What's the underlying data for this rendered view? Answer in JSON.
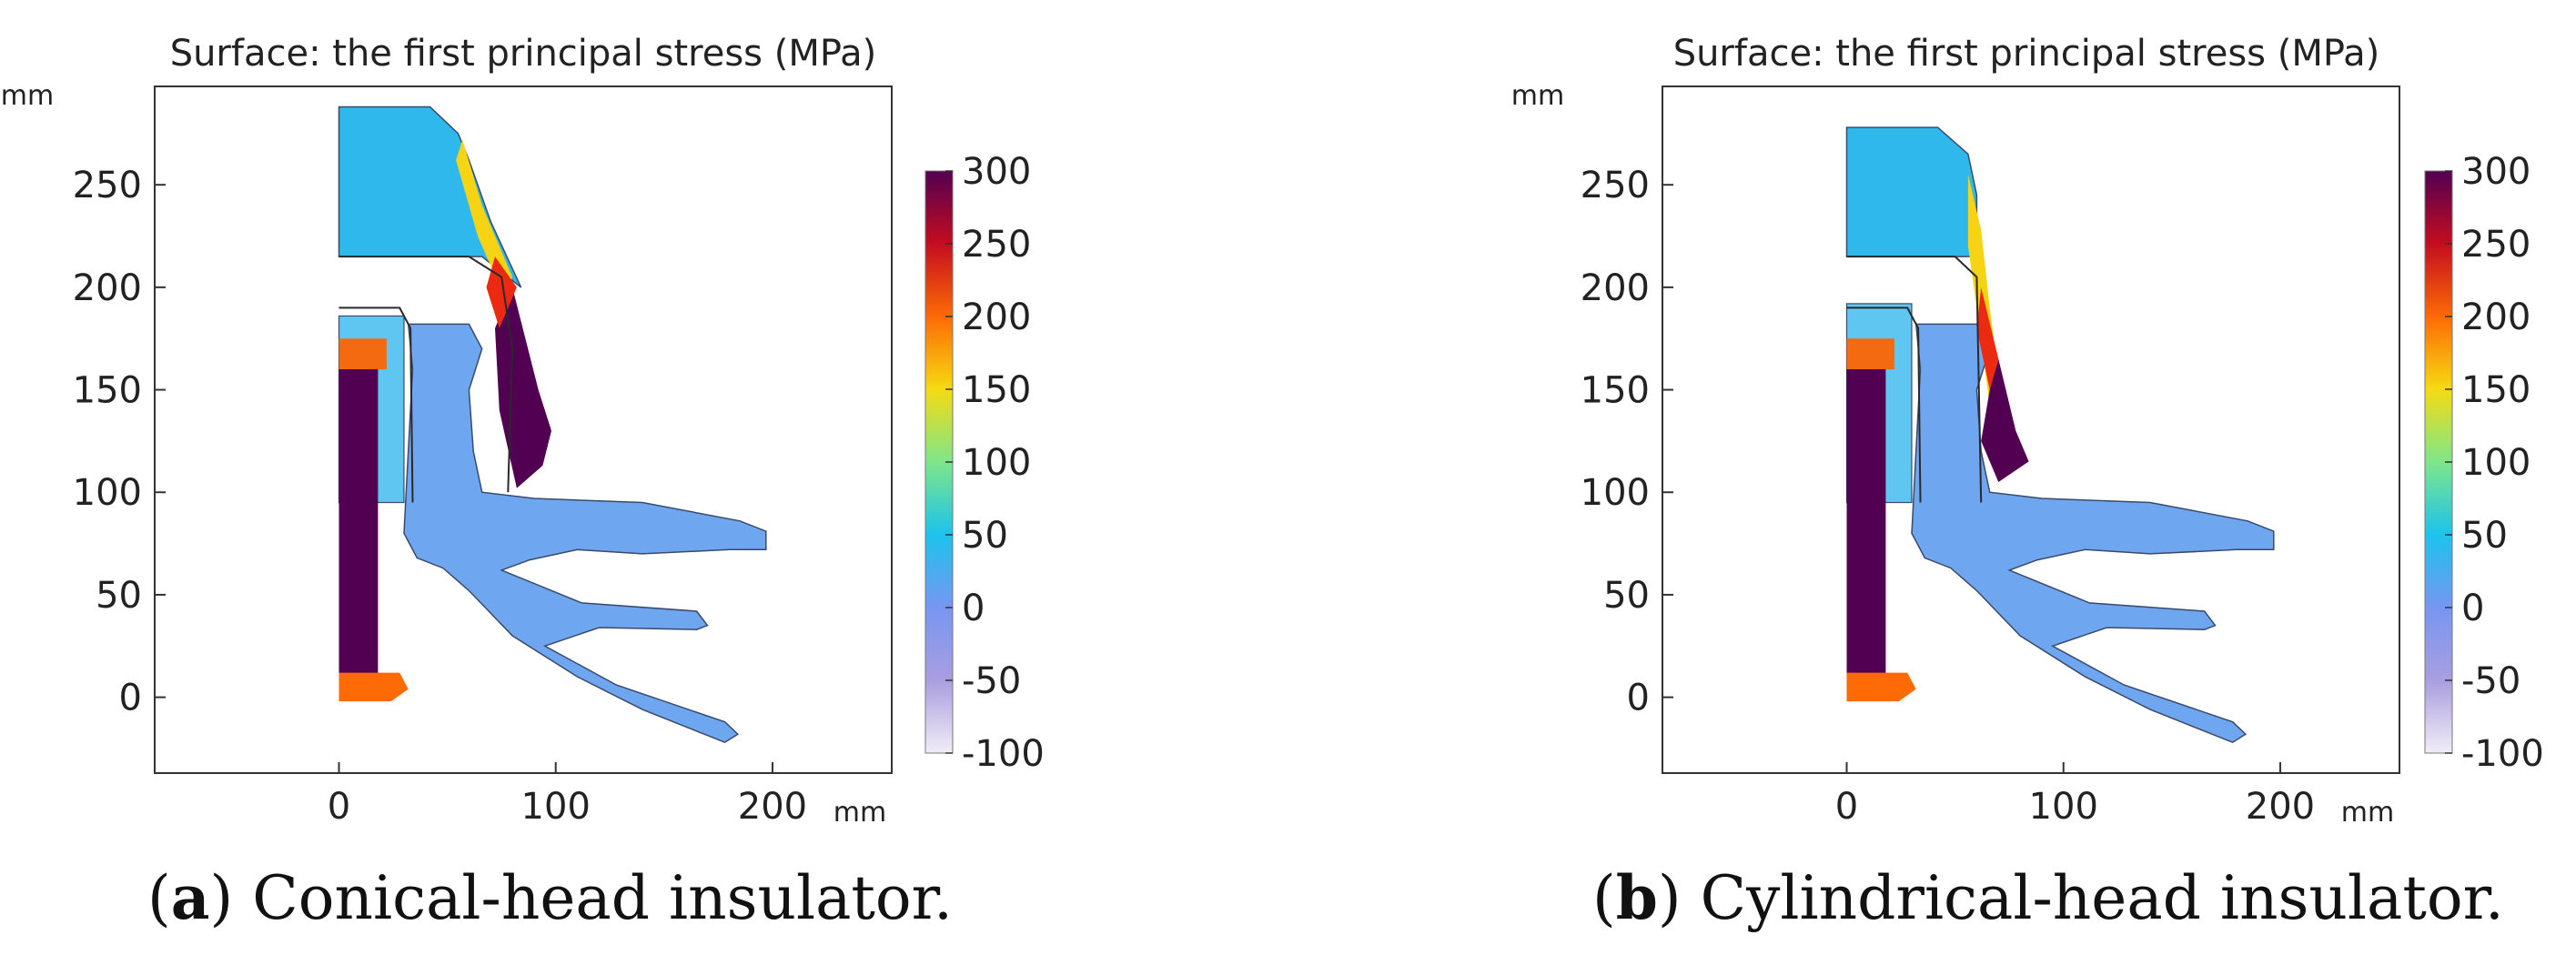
{
  "chart_data": [
    {
      "type": "heatmap",
      "panel_label": "a",
      "title": "Surface: the first principal stress (MPa)",
      "xlabel": "mm",
      "ylabel": "mm",
      "xlim": [
        -85,
        255
      ],
      "ylim": [
        -37,
        298
      ],
      "x_ticks": [
        0,
        100,
        200
      ],
      "y_ticks": [
        0,
        50,
        100,
        150,
        200,
        250
      ],
      "colorbar": {
        "min": -100,
        "max": 300,
        "ticks": [
          300,
          250,
          200,
          150,
          100,
          50,
          0,
          -50,
          -100
        ]
      },
      "caption_label": "a",
      "caption_text": "Conical-head insulator.",
      "head_shape": "conical"
    },
    {
      "type": "heatmap",
      "panel_label": "b",
      "title": "Surface: the first principal stress (MPa)",
      "xlabel": "mm",
      "ylabel": "mm",
      "xlim": [
        -85,
        255
      ],
      "ylim": [
        -37,
        298
      ],
      "x_ticks": [
        0,
        100,
        200
      ],
      "y_ticks": [
        0,
        50,
        100,
        150,
        200,
        250
      ],
      "colorbar": {
        "min": -100,
        "max": 300,
        "ticks": [
          300,
          250,
          200,
          150,
          100,
          50,
          0,
          -50,
          -100
        ]
      },
      "caption_label": "b",
      "caption_text": "Cylindrical-head insulator.",
      "head_shape": "cylindrical"
    }
  ]
}
